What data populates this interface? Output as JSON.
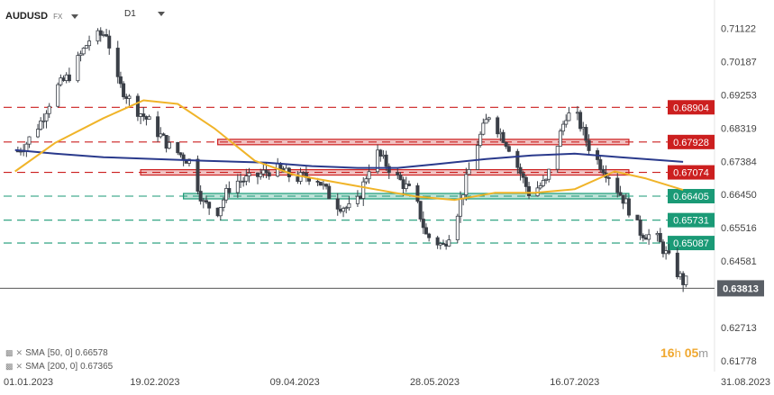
{
  "header": {
    "symbol": "AUDUSD",
    "symbol_type": "FX",
    "timeframe": "D1"
  },
  "legend": [
    {
      "label": "SMA",
      "params": "[50, 0]",
      "value": "0.66578",
      "color": "#f0b429"
    },
    {
      "label": "SMA",
      "params": "[200, 0]",
      "value": "0.67365",
      "color": "#2a3a8c"
    }
  ],
  "timer": {
    "hours": "16",
    "hours_unit": "h",
    "minutes": "05",
    "minutes_unit": "m"
  },
  "colors": {
    "up": "#ffffff",
    "down": "#3a3f47",
    "sma50": "#f0b429",
    "sma200": "#2a3a8c",
    "resistance": "#cc1f1f",
    "support": "#1a9a76",
    "current": "#555555"
  },
  "chart_data": {
    "type": "candlestick",
    "instrument": "AUDUSD",
    "timeframe": "D1",
    "x_ticks": [
      "01.01.2023",
      "19.02.2023",
      "09.04.2023",
      "28.05.2023",
      "16.07.2023",
      "31.08.2023"
    ],
    "y_ticks": [
      "0.71122",
      "0.70187",
      "0.69253",
      "0.68319",
      "0.67384",
      "0.66450",
      "0.65516",
      "0.64581",
      "0.62713",
      "0.61778"
    ],
    "ylim": [
      0.6147,
      0.7172
    ],
    "price_levels": [
      {
        "label": "0.68904",
        "value": 0.68904,
        "style": "dashed",
        "color": "#cc1f1f"
      },
      {
        "label": "0.67928",
        "value": 0.67928,
        "style": "dashed",
        "color": "#cc1f1f"
      },
      {
        "label": "0.67074",
        "value": 0.67074,
        "style": "dashed",
        "color": "#cc1f1f"
      },
      {
        "label": "0.66405",
        "value": 0.66405,
        "style": "dashed",
        "color": "#1a9a76"
      },
      {
        "label": "0.65731",
        "value": 0.65731,
        "style": "dashed",
        "color": "#1a9a76"
      },
      {
        "label": "0.65087",
        "value": 0.65087,
        "style": "dashed",
        "color": "#1a9a76"
      }
    ],
    "current_price": {
      "label": "0.63813",
      "value": 0.63813
    },
    "zones": [
      {
        "from": "13.03.2023",
        "to": "04.08.2023",
        "value": 0.67928,
        "color": "#cc1f1f"
      },
      {
        "from": "14.02.2023",
        "to": "04.08.2023",
        "value": 0.67074,
        "color": "#cc1f1f"
      },
      {
        "from": "01.03.2023",
        "to": "04.08.2023",
        "value": 0.66405,
        "color": "#1a9a76"
      }
    ],
    "path_knots": [
      [
        "01.01.2023",
        0.676
      ],
      [
        "05.01.2023",
        0.679
      ],
      [
        "10.01.2023",
        0.685
      ],
      [
        "15.01.2023",
        0.694
      ],
      [
        "20.01.2023",
        0.698
      ],
      [
        "27.01.2023",
        0.708
      ],
      [
        "02.02.2023",
        0.71
      ],
      [
        "06.02.2023",
        0.696
      ],
      [
        "12.02.2023",
        0.689
      ],
      [
        "17.02.2023",
        0.685
      ],
      [
        "24.02.2023",
        0.678
      ],
      [
        "03.03.2023",
        0.674
      ],
      [
        "08.03.2023",
        0.662
      ],
      [
        "13.03.2023",
        0.66
      ],
      [
        "18.03.2023",
        0.668
      ],
      [
        "25.03.2023",
        0.669
      ],
      [
        "02.04.2023",
        0.672
      ],
      [
        "09.04.2023",
        0.669
      ],
      [
        "16.04.2023",
        0.67
      ],
      [
        "23.04.2023",
        0.662
      ],
      [
        "30.04.2023",
        0.66
      ],
      [
        "07.05.2023",
        0.677
      ],
      [
        "14.05.2023",
        0.67
      ],
      [
        "21.05.2023",
        0.664
      ],
      [
        "25.05.2023",
        0.653
      ],
      [
        "31.05.2023",
        0.65
      ],
      [
        "04.06.2023",
        0.657
      ],
      [
        "11.06.2023",
        0.677
      ],
      [
        "16.06.2023",
        0.687
      ],
      [
        "23.06.2023",
        0.678
      ],
      [
        "30.06.2023",
        0.665
      ],
      [
        "06.07.2023",
        0.668
      ],
      [
        "13.07.2023",
        0.687
      ],
      [
        "17.07.2023",
        0.686
      ],
      [
        "22.07.2023",
        0.676
      ],
      [
        "28.07.2023",
        0.67
      ],
      [
        "03.08.2023",
        0.662
      ],
      [
        "08.08.2023",
        0.654
      ],
      [
        "14.08.2023",
        0.652
      ],
      [
        "19.08.2023",
        0.645
      ],
      [
        "23.08.2023",
        0.64
      ]
    ],
    "sma50_knots": [
      [
        "01.01.2023",
        0.671
      ],
      [
        "15.01.2023",
        0.679
      ],
      [
        "01.02.2023",
        0.686
      ],
      [
        "15.02.2023",
        0.691
      ],
      [
        "27.02.2023",
        0.69
      ],
      [
        "12.03.2023",
        0.683
      ],
      [
        "26.03.2023",
        0.674
      ],
      [
        "09.04.2023",
        0.67
      ],
      [
        "23.04.2023",
        0.668
      ],
      [
        "07.05.2023",
        0.666
      ],
      [
        "21.05.2023",
        0.664
      ],
      [
        "04.06.2023",
        0.663
      ],
      [
        "18.06.2023",
        0.665
      ],
      [
        "02.07.2023",
        0.665
      ],
      [
        "16.07.2023",
        0.666
      ],
      [
        "30.07.2023",
        0.671
      ],
      [
        "10.08.2023",
        0.669
      ],
      [
        "23.08.2023",
        0.6658
      ]
    ],
    "sma200_knots": [
      [
        "01.01.2023",
        0.677
      ],
      [
        "15.01.2023",
        0.676
      ],
      [
        "01.02.2023",
        0.675
      ],
      [
        "19.02.2023",
        0.6745
      ],
      [
        "09.03.2023",
        0.674
      ],
      [
        "30.03.2023",
        0.6735
      ],
      [
        "15.04.2023",
        0.6725
      ],
      [
        "01.05.2023",
        0.672
      ],
      [
        "15.05.2023",
        0.672
      ],
      [
        "28.05.2023",
        0.673
      ],
      [
        "15.06.2023",
        0.6745
      ],
      [
        "01.07.2023",
        0.6755
      ],
      [
        "16.07.2023",
        0.676
      ],
      [
        "01.08.2023",
        0.675
      ],
      [
        "23.08.2023",
        0.6737
      ]
    ]
  }
}
